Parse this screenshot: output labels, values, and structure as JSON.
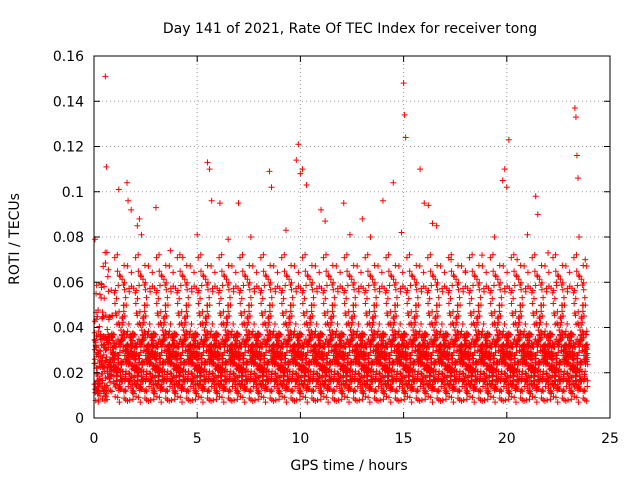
{
  "chart_data": {
    "type": "scatter",
    "title": "Day 141 of 2021, Rate Of TEC Index for receiver tong",
    "xlabel": "GPS time / hours",
    "ylabel": "ROTI / TECUs",
    "xlim": [
      0,
      25
    ],
    "ylim": [
      0,
      0.16
    ],
    "grid": true,
    "marker": "+",
    "color": "#ff0000",
    "x_ticks": [
      "0",
      "5",
      "10",
      "15",
      "20",
      "25"
    ],
    "y_ticks": [
      "0",
      "0.02",
      "0.04",
      "0.06",
      "0.08",
      "0.1",
      "0.12",
      "0.14",
      "0.16"
    ],
    "series": [
      {
        "name": "ROTI",
        "note": "dense scatter; representative sample of visible points",
        "x": [
          0.05,
          0.1,
          0.55,
          0.6,
          1.2,
          1.6,
          1.65,
          1.8,
          2.1,
          2.2,
          2.3,
          3.0,
          3.7,
          4.3,
          5.0,
          5.5,
          5.6,
          5.7,
          6.1,
          6.5,
          7.0,
          7.6,
          8.5,
          8.6,
          9.3,
          9.8,
          9.9,
          10.0,
          10.1,
          10.3,
          11.0,
          11.2,
          12.1,
          12.4,
          13.0,
          13.4,
          14.0,
          14.5,
          14.9,
          15.0,
          15.05,
          15.1,
          15.8,
          16.0,
          16.2,
          16.4,
          16.6,
          17.3,
          18.0,
          18.8,
          19.4,
          19.8,
          19.9,
          20.0,
          20.1,
          20.5,
          21.0,
          21.4,
          21.5,
          22.0,
          22.4,
          23.3,
          23.35,
          23.4,
          23.45,
          23.5,
          23.8
        ],
        "y": [
          0.079,
          0.055,
          0.151,
          0.111,
          0.101,
          0.104,
          0.096,
          0.092,
          0.085,
          0.088,
          0.081,
          0.093,
          0.074,
          0.071,
          0.081,
          0.113,
          0.11,
          0.096,
          0.095,
          0.079,
          0.095,
          0.08,
          0.109,
          0.102,
          0.083,
          0.114,
          0.121,
          0.108,
          0.11,
          0.103,
          0.092,
          0.087,
          0.095,
          0.081,
          0.088,
          0.08,
          0.096,
          0.104,
          0.082,
          0.148,
          0.134,
          0.124,
          0.11,
          0.095,
          0.094,
          0.086,
          0.085,
          0.07,
          0.065,
          0.072,
          0.08,
          0.105,
          0.11,
          0.102,
          0.123,
          0.07,
          0.081,
          0.098,
          0.09,
          0.073,
          0.06,
          0.137,
          0.133,
          0.116,
          0.106,
          0.08,
          0.07
        ]
      }
    ]
  }
}
